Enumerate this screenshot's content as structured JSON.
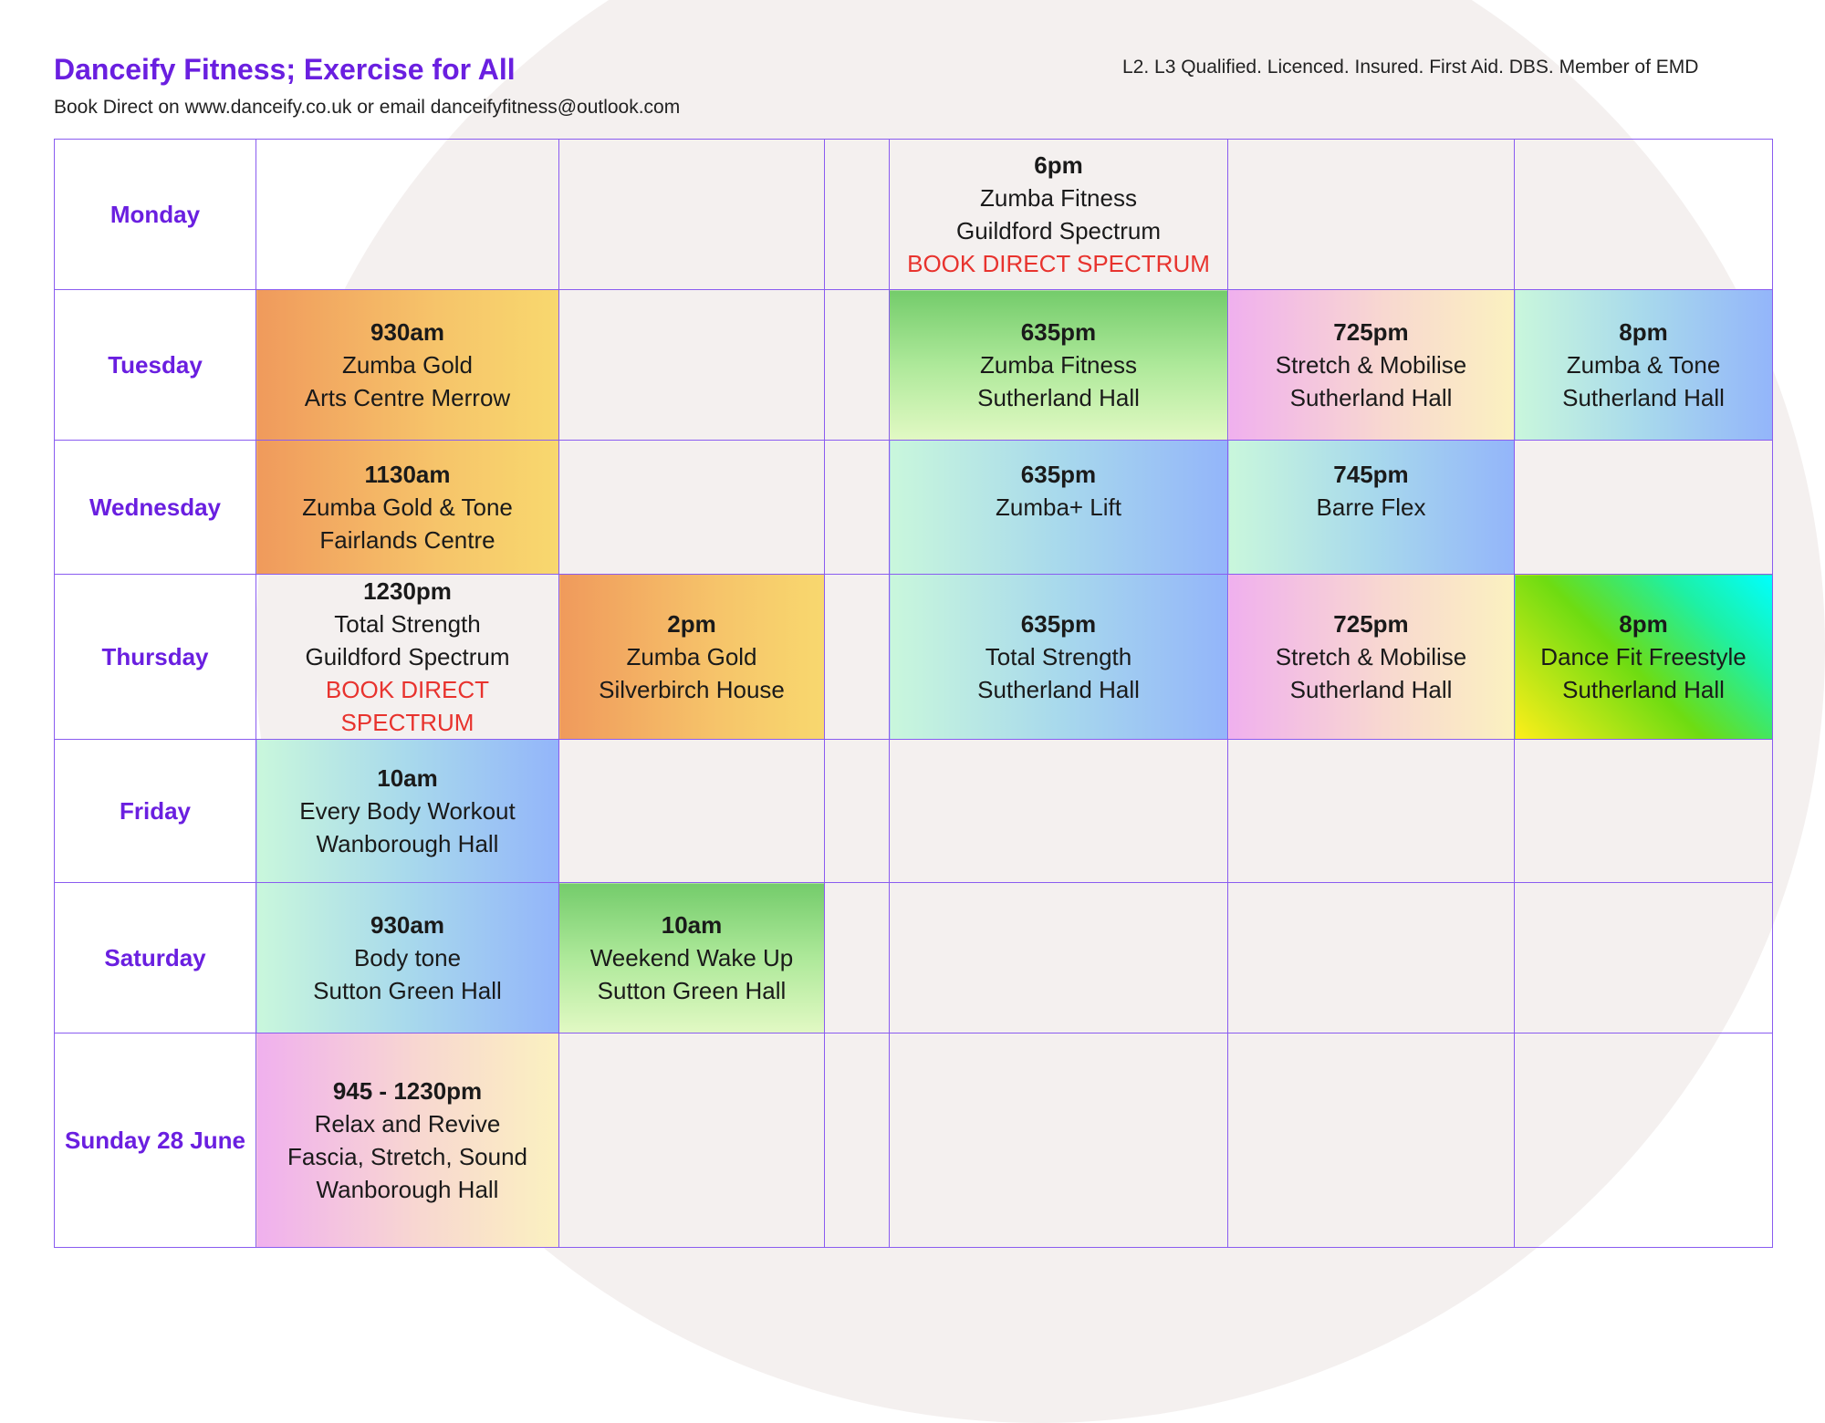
{
  "header": {
    "title": "Danceify Fitness; Exercise for All",
    "subtitle": "Book Direct on www.danceify.co.uk or email danceifyfitness@outlook.com",
    "qualifications": "L2. L3 Qualified. Licenced. Insured. First Aid. DBS. Member of EMD"
  },
  "days": {
    "monday": "Monday",
    "tuesday": "Tuesday",
    "wednesday": "Wednesday",
    "thursday": "Thursday",
    "friday": "Friday",
    "saturday": "Saturday",
    "sunday": "Sunday 28 June"
  },
  "classes": {
    "mon_6pm": {
      "time": "6pm",
      "name": "Zumba Fitness",
      "venue": "Guildford Spectrum",
      "note": "BOOK DIRECT SPECTRUM"
    },
    "tue_930": {
      "time": "930am",
      "name": "Zumba Gold",
      "venue": "Arts Centre Merrow"
    },
    "tue_635": {
      "time": "635pm",
      "name": "Zumba Fitness",
      "venue": "Sutherland Hall"
    },
    "tue_725": {
      "time": "725pm",
      "name": "Stretch & Mobilise",
      "venue": "Sutherland Hall"
    },
    "tue_8pm": {
      "time": "8pm",
      "name": "Zumba & Tone",
      "venue": "Sutherland Hall"
    },
    "wed_1130": {
      "time": "1130am",
      "name": "Zumba Gold & Tone",
      "venue": "Fairlands Centre"
    },
    "wed_635": {
      "time": "635pm",
      "name": "Zumba+ Lift"
    },
    "wed_745": {
      "time": "745pm",
      "name": "Barre Flex"
    },
    "thu_1230": {
      "time": "1230pm",
      "name": "Total Strength",
      "venue": "Guildford Spectrum",
      "note": "BOOK DIRECT SPECTRUM"
    },
    "thu_2pm": {
      "time": "2pm",
      "name": "Zumba Gold",
      "venue": "Silverbirch House"
    },
    "thu_635": {
      "time": "635pm",
      "name": "Total Strength",
      "venue": "Sutherland Hall"
    },
    "thu_725": {
      "time": "725pm",
      "name": "Stretch & Mobilise",
      "venue": "Sutherland Hall"
    },
    "thu_8pm": {
      "time": "8pm",
      "name": "Dance Fit Freestyle",
      "venue": "Sutherland Hall"
    },
    "fri_10am": {
      "time": "10am",
      "name": "Every Body Workout",
      "venue": "Wanborough Hall"
    },
    "sat_930": {
      "time": "930am",
      "name": "Body tone",
      "venue": "Sutton Green Hall"
    },
    "sat_10am": {
      "time": "10am",
      "name": "Weekend Wake Up",
      "venue": "Sutton Green Hall"
    },
    "sun_945": {
      "time": "945 - 1230pm",
      "name": "Relax and Revive",
      "detail": "Fascia, Stretch, Sound",
      "venue": "Wanborough Hall"
    }
  },
  "colors": {
    "brand_purple": "#6a1fe0",
    "border_purple": "#8a5cf0",
    "note_red": "#e8332e",
    "background_blob": "#f4f0ef"
  }
}
